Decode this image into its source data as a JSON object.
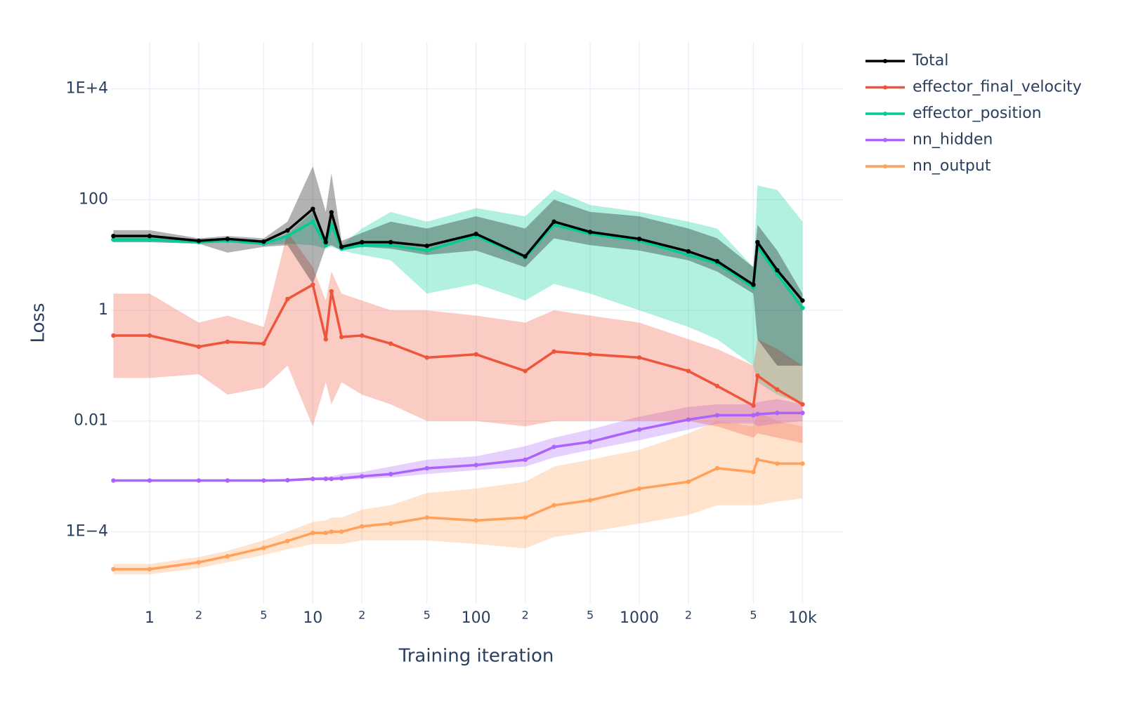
{
  "chart_data": {
    "type": "line",
    "x_label": "Training iteration",
    "y_label": "Loss",
    "log_x": true,
    "log_y": true,
    "grid": true,
    "legend": "right",
    "xlim": [
      0.58,
      17700
    ],
    "ylim": [
      5e-06,
      70000
    ],
    "xticks": [
      1,
      2,
      5,
      10,
      {
        "value": 20,
        "label": "2"
      },
      {
        "value": 50,
        "label": "5"
      },
      100,
      {
        "value": 200,
        "label": "2"
      },
      {
        "value": 500,
        "label": "5"
      },
      1000,
      {
        "value": 2000,
        "label": "2"
      },
      {
        "value": 5000,
        "label": "5"
      },
      {
        "value": 10000,
        "label": "10k"
      }
    ],
    "yticks": [
      {
        "value": 10000,
        "label": "1E+4"
      },
      100,
      1,
      0.01,
      {
        "value": 0.0001,
        "label": "1E−4"
      }
    ],
    "x": [
      0.6,
      1,
      2,
      3,
      5,
      7,
      10,
      12,
      13,
      15,
      20,
      30,
      50,
      100,
      200,
      300,
      500,
      1000,
      2000,
      3000,
      5000,
      5300,
      7000,
      10000
    ],
    "series": [
      {
        "name": "Total",
        "color": "#000000",
        "values": [
          22,
          22,
          18,
          19.5,
          17.4,
          27.7,
          68,
          17,
          59,
          14,
          17,
          17,
          14.6,
          24,
          9.4,
          40,
          26,
          19.5,
          11.6,
          7.7,
          2.9,
          17,
          5.3,
          1.5
        ],
        "upper": [
          28,
          28,
          20,
          22,
          20,
          40,
          400,
          60,
          300,
          18,
          25,
          40,
          30,
          50,
          30,
          100,
          60,
          50,
          30,
          20,
          6,
          35,
          12,
          2
        ],
        "lower": [
          17,
          17,
          16,
          11,
          14,
          15,
          3,
          14,
          15,
          12,
          14,
          13,
          10,
          12,
          6,
          20,
          15,
          12,
          8,
          5,
          2,
          0.3,
          0.1,
          0.1
        ]
      },
      {
        "name": "effector_final_velocity",
        "color": "#EF553B",
        "values": [
          0.35,
          0.35,
          0.22,
          0.27,
          0.25,
          1.6,
          2.9,
          0.3,
          2.2,
          0.33,
          0.35,
          0.25,
          0.14,
          0.16,
          0.08,
          0.18,
          0.16,
          0.14,
          0.08,
          0.043,
          0.019,
          0.066,
          0.037,
          0.02
        ],
        "upper": [
          2,
          2,
          0.6,
          0.8,
          0.5,
          26,
          6,
          1.5,
          5,
          2,
          1.5,
          1,
          1,
          0.8,
          0.6,
          1,
          0.8,
          0.6,
          0.3,
          0.2,
          0.1,
          0.3,
          0.2,
          0.1
        ],
        "lower": [
          0.06,
          0.06,
          0.07,
          0.03,
          0.04,
          0.1,
          0.008,
          0.05,
          0.02,
          0.05,
          0.03,
          0.02,
          0.01,
          0.01,
          0.008,
          0.01,
          0.01,
          0.01,
          0.01,
          0.008,
          0.005,
          0.006,
          0.005,
          0.004
        ]
      },
      {
        "name": "effector_position",
        "color": "#00CC96",
        "values": [
          19,
          19,
          17,
          18,
          16,
          22,
          40,
          15,
          35,
          13,
          15,
          15,
          12,
          22,
          9,
          35,
          24,
          18,
          10,
          7,
          2.6,
          14,
          4.5,
          1.1
        ],
        "upper": [
          21,
          21,
          18,
          19,
          17,
          24,
          60,
          20,
          50,
          15,
          30,
          60,
          40,
          70,
          50,
          150,
          80,
          60,
          40,
          30,
          6,
          180,
          150,
          40
        ],
        "lower": [
          17,
          17,
          16,
          17,
          15,
          16,
          15,
          13,
          14,
          12,
          10,
          8,
          2,
          3,
          1.5,
          3,
          2,
          1,
          0.5,
          0.3,
          0.1,
          0.05,
          0.03,
          0.02
        ]
      },
      {
        "name": "nn_hidden",
        "color": "#AB63FA",
        "values": [
          0.00084,
          0.00084,
          0.00084,
          0.00084,
          0.00084,
          0.00085,
          0.0009,
          0.0009,
          0.0009,
          0.00092,
          0.001,
          0.0011,
          0.0014,
          0.0016,
          0.002,
          0.0034,
          0.0042,
          0.007,
          0.0106,
          0.0127,
          0.0127,
          0.0133,
          0.014,
          0.014
        ],
        "upper": [
          0.00086,
          0.00086,
          0.00086,
          0.00086,
          0.00087,
          0.0009,
          0.00095,
          0.001,
          0.001,
          0.0011,
          0.0012,
          0.0015,
          0.002,
          0.0023,
          0.0035,
          0.005,
          0.007,
          0.012,
          0.018,
          0.02,
          0.02,
          0.022,
          0.025,
          0.02
        ],
        "lower": [
          0.00082,
          0.00082,
          0.00082,
          0.00082,
          0.00082,
          0.00082,
          0.00085,
          0.00085,
          0.00085,
          0.00086,
          0.0009,
          0.00095,
          0.0011,
          0.0013,
          0.0015,
          0.0022,
          0.003,
          0.0045,
          0.007,
          0.009,
          0.009,
          0.008,
          0.009,
          0.01
        ]
      },
      {
        "name": "nn_output",
        "color": "#FFA15A",
        "values": [
          2.1e-05,
          2.1e-05,
          2.8e-05,
          3.6e-05,
          5.1e-05,
          6.8e-05,
          9.5e-05,
          9.5e-05,
          0.0001,
          0.0001,
          0.000125,
          0.00014,
          0.00018,
          0.00016,
          0.00018,
          0.0003,
          0.00037,
          0.0006,
          0.0008,
          0.0014,
          0.0012,
          0.002,
          0.0017,
          0.0017
        ],
        "upper": [
          2.6e-05,
          2.6e-05,
          3.5e-05,
          4.5e-05,
          7e-05,
          0.0001,
          0.00015,
          0.00016,
          0.00018,
          0.00018,
          0.00025,
          0.0003,
          0.0005,
          0.0006,
          0.0008,
          0.0015,
          0.002,
          0.003,
          0.006,
          0.01,
          0.008,
          0.015,
          0.01,
          0.008
        ],
        "lower": [
          1.7e-05,
          1.7e-05,
          2.2e-05,
          2.8e-05,
          3.8e-05,
          4.8e-05,
          6e-05,
          6e-05,
          6e-05,
          6e-05,
          7e-05,
          7e-05,
          7e-05,
          6e-05,
          5e-05,
          8e-05,
          0.0001,
          0.00014,
          0.0002,
          0.0003,
          0.0003,
          0.0003,
          0.00035,
          0.0004
        ]
      }
    ]
  }
}
